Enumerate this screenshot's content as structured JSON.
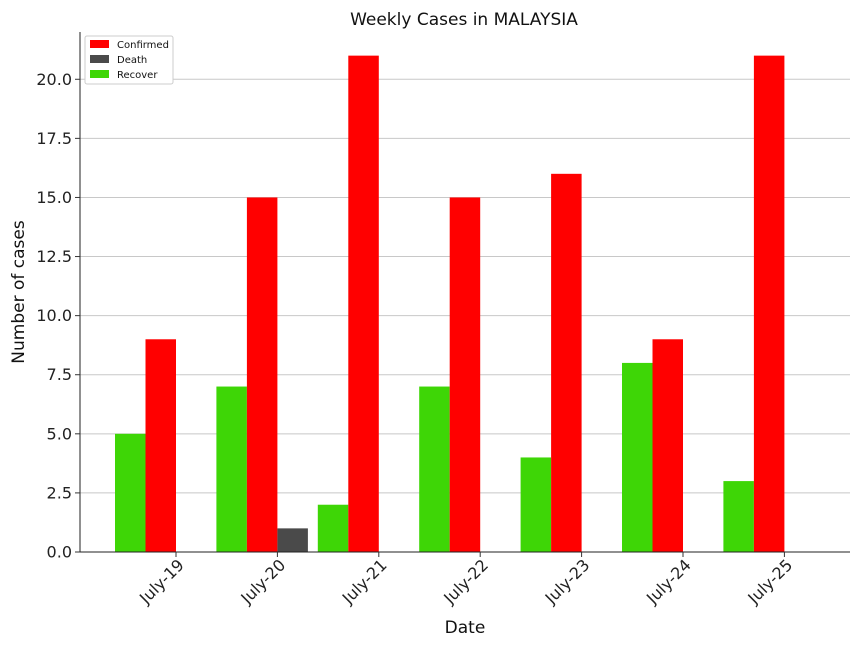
{
  "chart_data": {
    "type": "bar",
    "title": "Weekly Cases in MALAYSIA",
    "xlabel": "Date",
    "ylabel": "Number of cases",
    "categories": [
      "July-19",
      "July-20",
      "July-21",
      "July-22",
      "July-23",
      "July-24",
      "July-25"
    ],
    "series": [
      {
        "name": "Recover",
        "color": "#3ed606",
        "values": [
          5,
          7,
          2,
          7,
          4,
          8,
          3
        ]
      },
      {
        "name": "Confirmed",
        "color": "#ff0000",
        "values": [
          9,
          15,
          21,
          15,
          16,
          9,
          21
        ]
      },
      {
        "name": "Death",
        "color": "#4a4a4a",
        "values": [
          0,
          1,
          0,
          0,
          0,
          0,
          0
        ]
      }
    ],
    "legend_order": [
      "Confirmed",
      "Death",
      "Recover"
    ],
    "legend_position": "top-left",
    "ylim": [
      0,
      22
    ],
    "yticks": [
      "0.0",
      "2.5",
      "5.0",
      "7.5",
      "10.0",
      "12.5",
      "15.0",
      "17.5",
      "20.0"
    ],
    "grid": "horizontal",
    "xtick_rotation": 45
  }
}
